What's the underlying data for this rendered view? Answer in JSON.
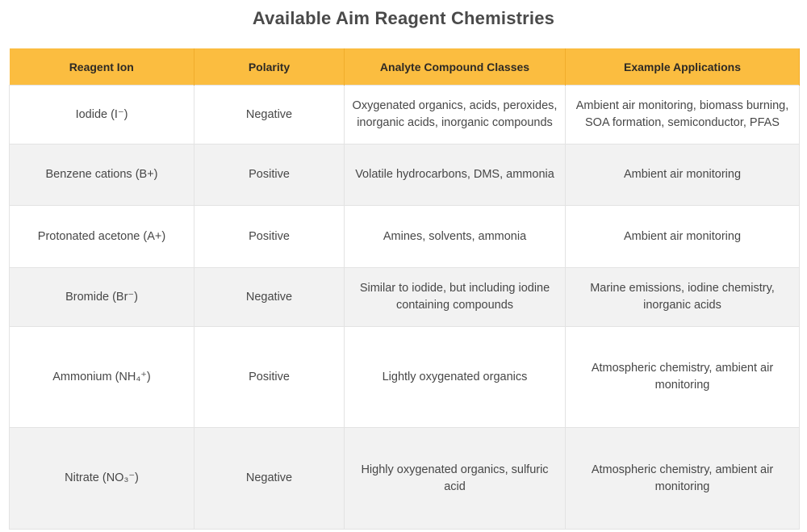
{
  "title": "Available Aim Reagent Chemistries",
  "headers": [
    "Reagent Ion",
    "Polarity",
    "Analyte Compound Classes",
    "Example Applications"
  ],
  "rows": [
    {
      "ion": "Iodide (I⁻)",
      "polarity": "Negative",
      "analytes": "Oxygenated organics, acids, peroxides, inorganic acids, inorganic compounds",
      "applications": "Ambient air monitoring, biomass burning, SOA formation, semiconductor, PFAS"
    },
    {
      "ion": "Benzene cations (B+)",
      "polarity": "Positive",
      "analytes": "Volatile hydrocarbons, DMS, ammonia",
      "applications": "Ambient air monitoring"
    },
    {
      "ion": "Protonated acetone (A+)",
      "polarity": "Positive",
      "analytes": "Amines, solvents, ammonia",
      "applications": "Ambient air monitoring"
    },
    {
      "ion": "Bromide (Br⁻)",
      "polarity": "Negative",
      "analytes": "Similar to iodide, but including iodine containing compounds",
      "applications": "Marine emissions, iodine chemistry, inorganic acids"
    },
    {
      "ion": "Ammonium (NH₄⁺)",
      "polarity": "Positive",
      "analytes": "Lightly oxygenated organics",
      "applications": "Atmospheric chemistry, ambient air monitoring"
    },
    {
      "ion": "Nitrate (NO₃⁻)",
      "polarity": "Negative",
      "analytes": "Highly oxygenated organics, sulfuric acid",
      "applications": "Atmospheric chemistry, ambient air monitoring"
    }
  ]
}
